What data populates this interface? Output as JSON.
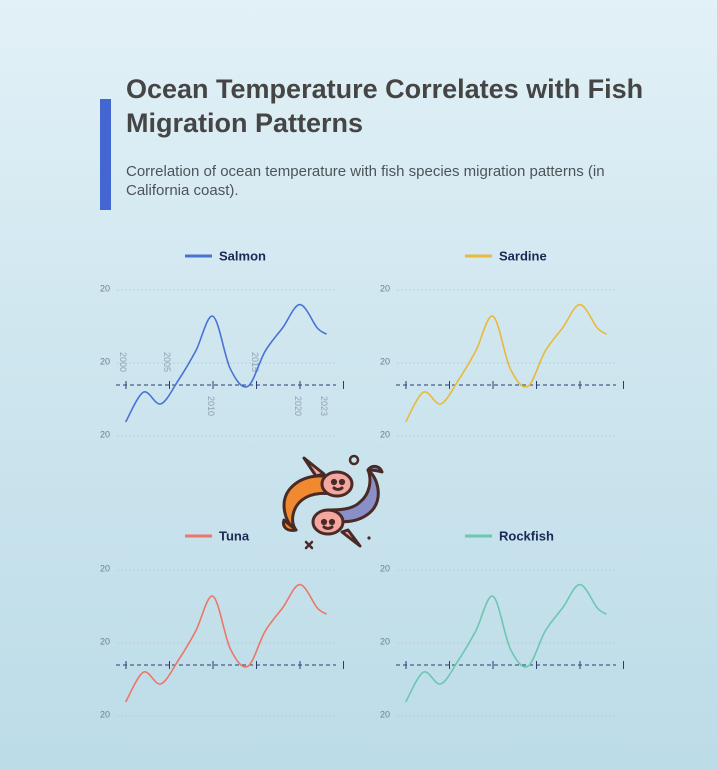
{
  "header": {
    "title": "Ocean Temperature Correlates with Fish Migration Patterns",
    "subtitle": "Correlation of ocean temperature with fish species migration patterns (in California coast)."
  },
  "colors": {
    "accent": "#4466d0",
    "salmon": "#4a72d4",
    "sardine": "#e8b93a",
    "tuna": "#ec7668",
    "rockfish": "#6cc7b0",
    "axis": "#2c3d6e",
    "grid": "#b7c7d3"
  },
  "icons": {
    "illustration": "two-fish-icon"
  },
  "chart_data": [
    {
      "type": "line",
      "series": [
        {
          "name": "Salmon",
          "x": [
            2000,
            2002,
            2004,
            2006,
            2008,
            2010,
            2012,
            2014,
            2016,
            2018,
            2020,
            2022,
            2023
          ],
          "values": [
            -1.0,
            -0.5,
            -0.7,
            -0.3,
            0.2,
            0.8,
            -0.1,
            -0.4,
            0.2,
            0.6,
            1.0,
            0.6,
            0.5
          ]
        }
      ],
      "x_tick_labels": [
        "2000",
        "2005",
        "2010",
        "2015",
        "2020",
        "2023"
      ],
      "y_tick_labels": [
        "20",
        "20",
        "20"
      ],
      "legend": "top",
      "grid": true
    },
    {
      "type": "line",
      "series": [
        {
          "name": "Sardine",
          "x": [
            2000,
            2002,
            2004,
            2006,
            2008,
            2010,
            2012,
            2014,
            2016,
            2018,
            2020,
            2022,
            2023
          ],
          "values": [
            -1.0,
            -0.5,
            -0.7,
            -0.3,
            0.2,
            0.8,
            -0.1,
            -0.4,
            0.2,
            0.6,
            1.0,
            0.6,
            0.5
          ]
        }
      ],
      "y_tick_labels": [
        "20",
        "20",
        "20"
      ],
      "legend": "top",
      "grid": true
    },
    {
      "type": "line",
      "series": [
        {
          "name": "Tuna",
          "x": [
            2000,
            2002,
            2004,
            2006,
            2008,
            2010,
            2012,
            2014,
            2016,
            2018,
            2020,
            2022,
            2023
          ],
          "values": [
            -1.0,
            -0.5,
            -0.7,
            -0.3,
            0.2,
            0.8,
            -0.1,
            -0.4,
            0.2,
            0.6,
            1.0,
            0.6,
            0.5
          ]
        }
      ],
      "y_tick_labels": [
        "20",
        "20",
        "20"
      ],
      "legend": "top",
      "grid": true
    },
    {
      "type": "line",
      "series": [
        {
          "name": "Rockfish",
          "x": [
            2000,
            2002,
            2004,
            2006,
            2008,
            2010,
            2012,
            2014,
            2016,
            2018,
            2020,
            2022,
            2023
          ],
          "values": [
            -1.0,
            -0.5,
            -0.7,
            -0.3,
            0.2,
            0.8,
            -0.1,
            -0.4,
            0.2,
            0.6,
            1.0,
            0.6,
            0.5
          ]
        }
      ],
      "y_tick_labels": [
        "20",
        "20",
        "20"
      ],
      "legend": "top",
      "grid": true
    }
  ]
}
